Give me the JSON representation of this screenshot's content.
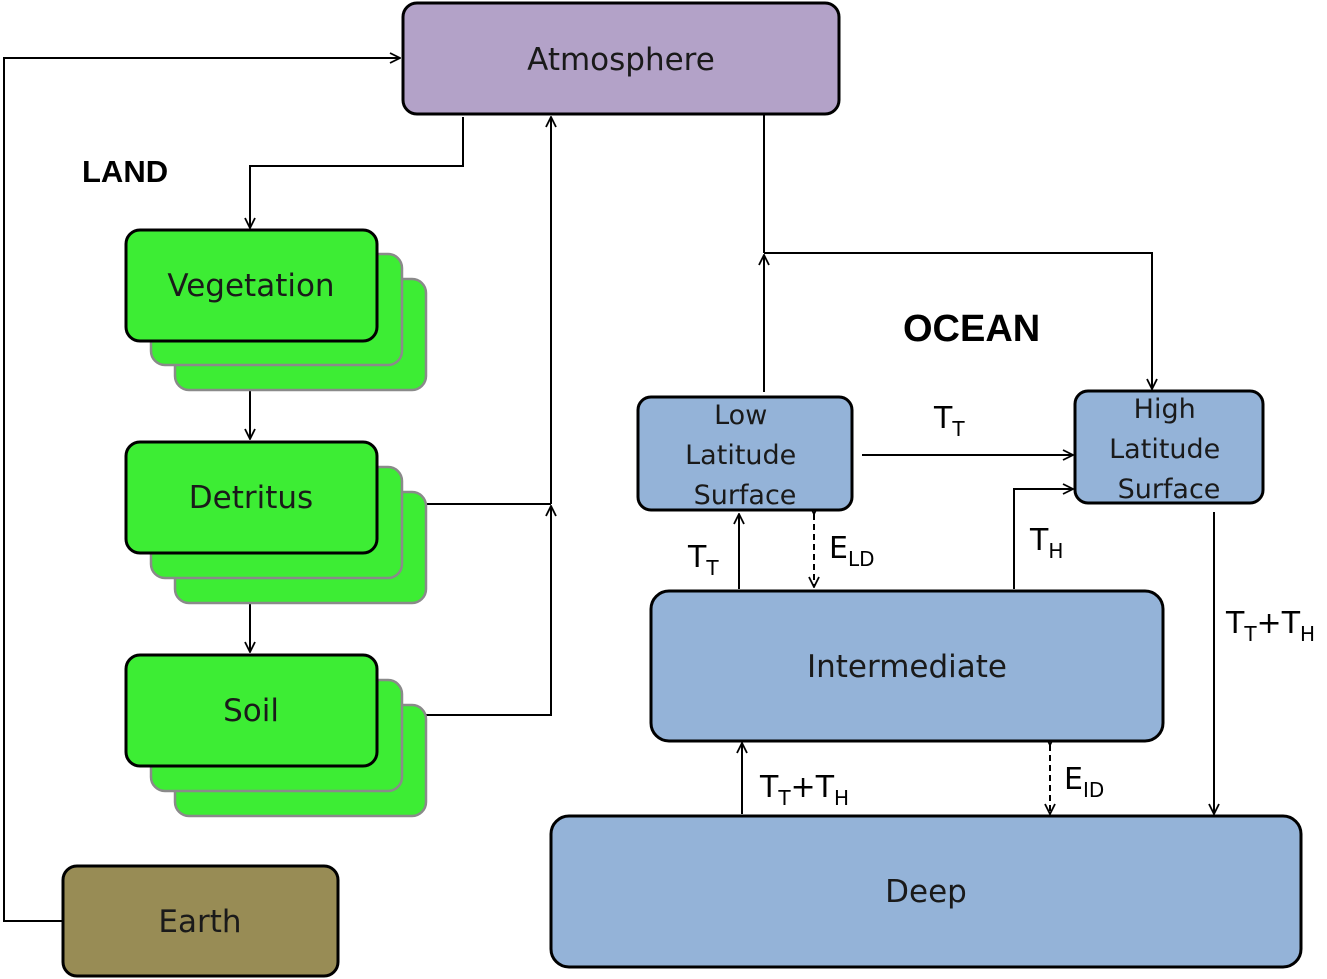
{
  "colors": {
    "atmosphere": "#b3a2c8",
    "land_pool": "#3ded34",
    "earth": "#988c55",
    "ocean": "#94b3d8",
    "stroke": "#000000",
    "shadow_stroke": "#8a8a8a"
  },
  "sections": {
    "land": "LAND",
    "ocean": "OCEAN"
  },
  "boxes": {
    "atmosphere": "Atmosphere",
    "vegetation": "Vegetation",
    "detritus": "Detritus",
    "soil": "Soil",
    "earth": "Earth",
    "low_lat": [
      "Low",
      "Latitude",
      "Surface"
    ],
    "high_lat": [
      "High",
      "Latitude",
      "Surface"
    ],
    "intermediate": "Intermediate",
    "deep": "Deep"
  },
  "flow_labels": {
    "tt_top": {
      "main": "T",
      "sub": "T"
    },
    "tt_left": {
      "main": "T",
      "sub": "T"
    },
    "eld": {
      "main": "E",
      "sub": "LD"
    },
    "th": {
      "main": "T",
      "sub": "H"
    },
    "tt_th_right": {
      "main1": "T",
      "sub1": "T",
      "plus": "+",
      "main2": "T",
      "sub2": "H"
    },
    "tt_th_bottom": {
      "main1": "T",
      "sub1": "T",
      "plus": "+",
      "main2": "T",
      "sub2": "H"
    },
    "eid": {
      "main": "E",
      "sub": "ID"
    }
  }
}
